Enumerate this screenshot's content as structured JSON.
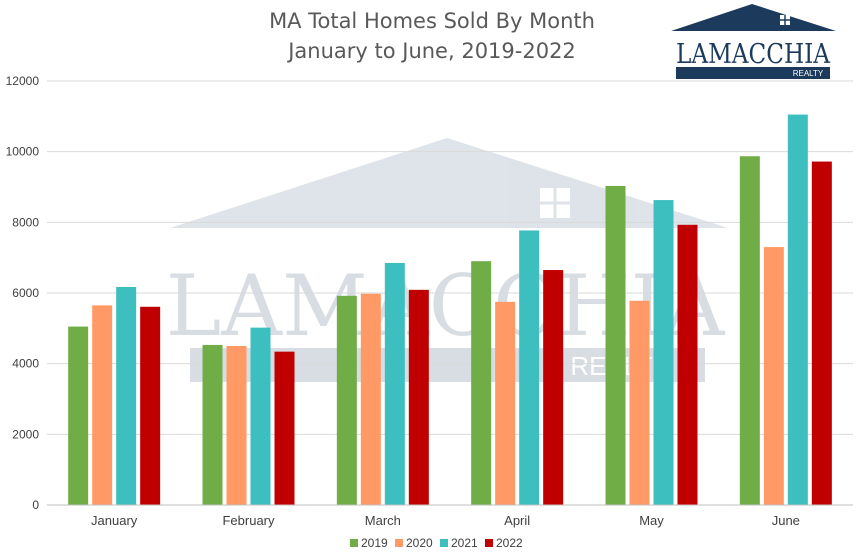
{
  "chart_data": {
    "type": "bar",
    "title_lines": [
      "MA Total Homes Sold By Month",
      "January to June, 2019-2022"
    ],
    "categories": [
      "January",
      "February",
      "March",
      "April",
      "May",
      "June"
    ],
    "series": [
      {
        "name": "2019",
        "color": "#70ad47",
        "values": [
          5050,
          4530,
          5920,
          6900,
          9030,
          9870
        ]
      },
      {
        "name": "2020",
        "color": "#ff9966",
        "values": [
          5650,
          4500,
          5980,
          5750,
          5780,
          7300
        ]
      },
      {
        "name": "2021",
        "color": "#3dbfbf",
        "values": [
          6170,
          5020,
          6850,
          7770,
          8630,
          11050
        ]
      },
      {
        "name": "2022",
        "color": "#c00000",
        "values": [
          5610,
          4340,
          6090,
          6650,
          7930,
          9720
        ]
      }
    ],
    "ylim": [
      0,
      12000
    ],
    "yticks": [
      0,
      2000,
      4000,
      6000,
      8000,
      10000,
      12000
    ],
    "grid": true,
    "legend_position": "bottom",
    "xlabel": "",
    "ylabel": ""
  },
  "logo": {
    "name": "LAMACCHIA",
    "sub": "REALTY",
    "color": "#1b3a5c"
  },
  "watermark": {
    "name": "LAMACCHIA",
    "sub": "REALTY"
  }
}
